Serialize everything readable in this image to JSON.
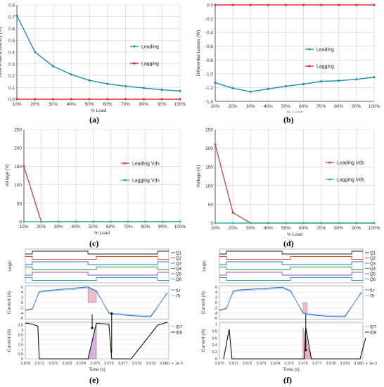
{
  "colors": {
    "leading": "#1f8fae",
    "lagging": "#e0303a",
    "grid": "#d0d0d0",
    "axis": "#333333",
    "lead_vds": "#d24b4b",
    "lag_vds": "#34b8a4"
  },
  "panels": {
    "a": {
      "sublabel": "(a)"
    },
    "b": {
      "sublabel": "(b)"
    },
    "c": {
      "sublabel": "(c)"
    },
    "d": {
      "sublabel": "(d)"
    },
    "e": {
      "sublabel": "(e)"
    },
    "f": {
      "sublabel": "(f)"
    }
  },
  "chart_data": [
    {
      "id": "a",
      "type": "line",
      "categories": [
        "10%",
        "20%",
        "30%",
        "40%",
        "50%",
        "60%",
        "70%",
        "80%",
        "90%",
        "100%"
      ],
      "xlabel": "% Load",
      "ylabel": "Differential efficiency (%)",
      "ylim": [
        0,
        0.8
      ],
      "yticks": [
        "0.0",
        "0.1",
        "0.2",
        "0.3",
        "0.4",
        "0.5",
        "0.6",
        "0.7",
        "0.8"
      ],
      "series": [
        {
          "name": "Leading",
          "values": [
            0.71,
            0.4,
            0.28,
            0.21,
            0.16,
            0.13,
            0.11,
            0.095,
            0.08,
            0.07
          ]
        },
        {
          "name": "Lagging",
          "values": [
            0,
            0,
            0,
            0,
            0,
            0,
            0,
            0,
            0,
            0
          ]
        }
      ],
      "legend": "center-right"
    },
    {
      "id": "b",
      "type": "line",
      "categories": [
        "10%",
        "20%",
        "30%",
        "40%",
        "50%",
        "60%",
        "70%",
        "80%",
        "90%",
        "100%"
      ],
      "xlabel": "% Load",
      "ylabel": "Differential Losses (W)",
      "ylim": [
        -1.4,
        0
      ],
      "yticks": [
        "-1.4",
        "-1.2",
        "-1.0",
        "-0.8",
        "-0.6",
        "-0.4",
        "-0.2",
        "0.0"
      ],
      "series": [
        {
          "name": "Leading",
          "values": [
            -1.13,
            -1.21,
            -1.26,
            -1.22,
            -1.18,
            -1.15,
            -1.11,
            -1.1,
            -1.08,
            -1.05
          ]
        },
        {
          "name": "Lagging",
          "values": [
            0,
            0,
            0,
            0,
            0,
            0,
            0,
            0,
            0,
            0
          ]
        }
      ],
      "legend": "center-right"
    },
    {
      "id": "c",
      "type": "line",
      "categories": [
        "10%",
        "20%",
        "30%",
        "40%",
        "50%",
        "60%",
        "70%",
        "80%",
        "90%",
        "100%"
      ],
      "xlabel": "% Load",
      "ylabel": "Voltage (V)",
      "ylim": [
        0,
        250
      ],
      "yticks": [
        "0",
        "50",
        "100",
        "150",
        "200",
        "250"
      ],
      "series": [
        {
          "name": "Leading Vds",
          "values": [
            150,
            0,
            0,
            0,
            0,
            0,
            0,
            0,
            0,
            0
          ]
        },
        {
          "name": "Lagging Vds",
          "values": [
            0,
            0,
            0,
            0,
            0,
            0,
            0,
            0,
            0,
            0
          ]
        }
      ],
      "legend": "center-right"
    },
    {
      "id": "d",
      "type": "line",
      "categories": [
        "10%",
        "20%",
        "30%",
        "40%",
        "50%",
        "60%",
        "70%",
        "80%",
        "90%",
        "100%"
      ],
      "xlabel": "% Load",
      "ylabel": "Voltage (V)",
      "ylim": [
        0,
        250
      ],
      "yticks": [
        "0",
        "50",
        "100",
        "150",
        "200",
        "250"
      ],
      "series": [
        {
          "name": "Leading Vds",
          "values": [
            210,
            28,
            0,
            0,
            0,
            0,
            0,
            0,
            0,
            0
          ]
        },
        {
          "name": "Lagging Vds",
          "values": [
            0,
            0,
            0,
            0,
            0,
            0,
            0,
            0,
            0,
            0
          ]
        }
      ],
      "legend": "center-right"
    },
    {
      "id": "e",
      "type": "line",
      "xticks": [
        "3.970",
        "3.971",
        "3.972",
        "3.973",
        "3.974",
        "3.975",
        "3.976",
        "3.977",
        "3.978",
        "3.979",
        "3.980",
        "+ 1e-3"
      ],
      "xlabel": "Time (s)",
      "logic": {
        "ylabel": "Logic",
        "signals": [
          "Q1",
          "Q2",
          "Q3",
          "Q4",
          "Q5",
          "Q6"
        ]
      },
      "current": {
        "ylabel": "Current (A)",
        "yticks": [
          "6",
          "4",
          "2",
          "0",
          "-2",
          "-4",
          "-6"
        ],
        "legend": [
          "iLr",
          "iTr"
        ],
        "x": [
          3.97,
          3.9705,
          3.971,
          3.9713,
          3.9745,
          3.9751,
          3.976,
          3.9763,
          3.9775,
          3.979,
          3.9802
        ],
        "values": [
          -3.0,
          -2.5,
          4.2,
          4.5,
          6.0,
          4.5,
          -4.0,
          -4.4,
          -5.0,
          -5.5,
          3.8
        ]
      },
      "diode": {
        "ylabel": "Current (A)",
        "yticks": [
          "3.5",
          "3",
          "2.5",
          "2",
          "1.5",
          "1",
          "0.5",
          "0"
        ],
        "legend": [
          "iD7",
          "iD8"
        ],
        "x": [
          3.97,
          3.9702,
          3.9705,
          3.9709,
          3.971,
          3.9745,
          3.9751,
          3.976,
          3.9762,
          3.9766,
          3.9776,
          3.9795,
          3.9802
        ],
        "values": [
          3.7,
          3.7,
          3.6,
          3.4,
          0.0,
          0.0,
          3.7,
          3.6,
          0.0,
          0.0,
          0.0,
          3.5,
          3.8
        ]
      }
    },
    {
      "id": "f",
      "type": "line",
      "xticks": [
        "3.970",
        "3.971",
        "3.972",
        "3.973",
        "3.974",
        "3.975",
        "3.976",
        "3.977",
        "3.978",
        "3.979",
        "3.980",
        "+ 1e-3"
      ],
      "xlabel": "Time (s)",
      "logic": {
        "ylabel": "Logic",
        "signals": [
          "Q1",
          "Q2",
          "Q3",
          "Q4",
          "Q5",
          "Q6"
        ]
      },
      "current": {
        "ylabel": "Current (A)",
        "yticks": [
          "6",
          "4",
          "2",
          "0",
          "-2",
          "-4",
          "-6"
        ],
        "legend": [
          "iLr",
          "iTr"
        ],
        "x": [
          3.97,
          3.9705,
          3.971,
          3.9713,
          3.9745,
          3.9751,
          3.976,
          3.9763,
          3.9775,
          3.979,
          3.9802
        ],
        "values": [
          -3.0,
          -2.3,
          4.4,
          4.8,
          5.9,
          4.6,
          -4.0,
          -4.6,
          -5.2,
          -5.5,
          4.0
        ]
      },
      "diode": {
        "ylabel": "Current (A)",
        "yticks": [
          "1",
          "0.8",
          "0.6",
          "0.4",
          "0.2",
          "0"
        ],
        "legend": [
          "iD7",
          "iD8"
        ],
        "x": [
          3.9703,
          3.9707,
          3.9709,
          3.9761,
          3.9762,
          3.9766,
          3.9801,
          3.9805
        ],
        "values": [
          0.0,
          0.85,
          0.0,
          0.0,
          0.9,
          0.0,
          0.0,
          0.6
        ]
      }
    }
  ]
}
